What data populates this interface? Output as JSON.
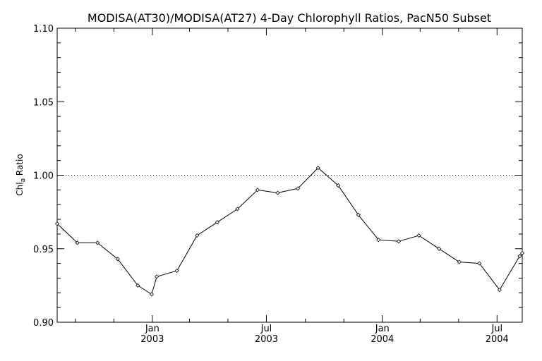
{
  "chart_data": {
    "type": "line",
    "title": "MODISA(AT30)/MODISA(AT27) 4-Day Chlorophyll Ratios, PacN50 Subset",
    "ylabel_main": "Chl",
    "ylabel_sub": "a",
    "ylabel_rest": " Ratio",
    "xlabel": "",
    "ylim": [
      0.9,
      1.1
    ],
    "xlim": [
      "2002-08-03",
      "2004-08-10"
    ],
    "reference_line": 1.0,
    "yticks": [
      "0.90",
      "0.95",
      "1.00",
      "1.05",
      "1.10"
    ],
    "xticks": [
      {
        "x": "2003-01-01",
        "month": "Jan",
        "year": "2003"
      },
      {
        "x": "2003-07-01",
        "month": "Jul",
        "year": "2003"
      },
      {
        "x": "2004-01-01",
        "month": "Jan",
        "year": "2004"
      },
      {
        "x": "2004-07-01",
        "month": "Jul",
        "year": "2004"
      }
    ],
    "series": [
      {
        "x": [
          "2002-08-03",
          "2002-09-04",
          "2002-10-06",
          "2002-11-07",
          "2002-12-09",
          "2002-12-31",
          "2003-01-08",
          "2003-02-09",
          "2003-03-13",
          "2003-04-14",
          "2003-05-16",
          "2003-06-17",
          "2003-07-19",
          "2003-08-20",
          "2003-09-21",
          "2003-10-23",
          "2003-11-24",
          "2003-12-26",
          "2004-01-27",
          "2004-02-28",
          "2004-03-31",
          "2004-05-02",
          "2004-06-03",
          "2004-07-05",
          "2004-08-06",
          "2004-08-10"
        ],
        "y": [
          0.967,
          0.954,
          0.954,
          0.943,
          0.925,
          0.919,
          0.931,
          0.935,
          0.959,
          0.968,
          0.977,
          0.99,
          0.988,
          0.991,
          1.005,
          0.993,
          0.973,
          0.956,
          0.955,
          0.959,
          0.95,
          0.941,
          0.94,
          0.922,
          0.945,
          0.947
        ]
      }
    ]
  }
}
